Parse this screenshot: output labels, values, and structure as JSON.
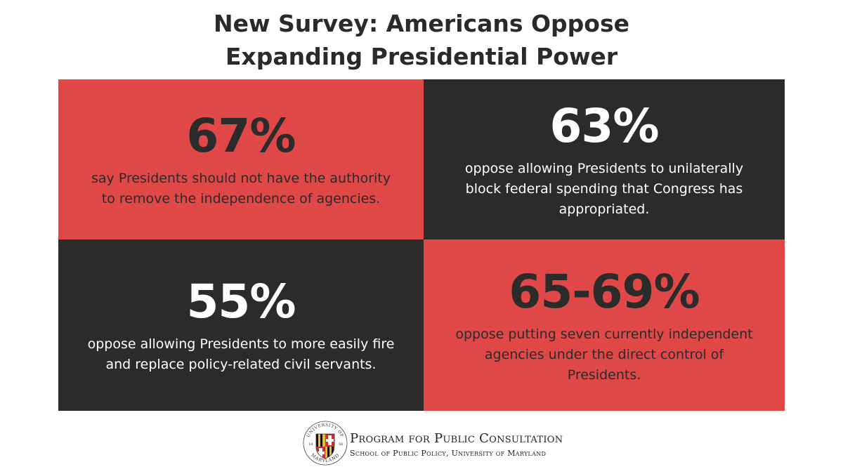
{
  "header": {
    "title_line1": "New Survey: Americans Oppose",
    "title_line2": "Expanding Presidential Power"
  },
  "stats": [
    {
      "value": "67%",
      "text": "say Presidents should not have the authority to remove the independence of agencies.",
      "color": "#e04848"
    },
    {
      "value": "63%",
      "text": "oppose allowing Presidents to unilaterally block federal spending that Congress has appropriated.",
      "color": "#2b2b2b"
    },
    {
      "value": "55%",
      "text": "oppose allowing Presidents to more easily fire and replace policy-related civil servants.",
      "color": "#2b2b2b"
    },
    {
      "value": "65-69%",
      "text": "oppose putting seven currently independent agencies under the direct control of Presidents.",
      "color": "#e04848"
    }
  ],
  "footer": {
    "org_name": "Program for Public Consultation",
    "org_sub": "School of Public Policy, University of Maryland",
    "seal_text_top": "UNIVERSITY OF",
    "seal_text_bottom": "MARYLAND",
    "seal_year_left": "18",
    "seal_year_right": "56"
  }
}
